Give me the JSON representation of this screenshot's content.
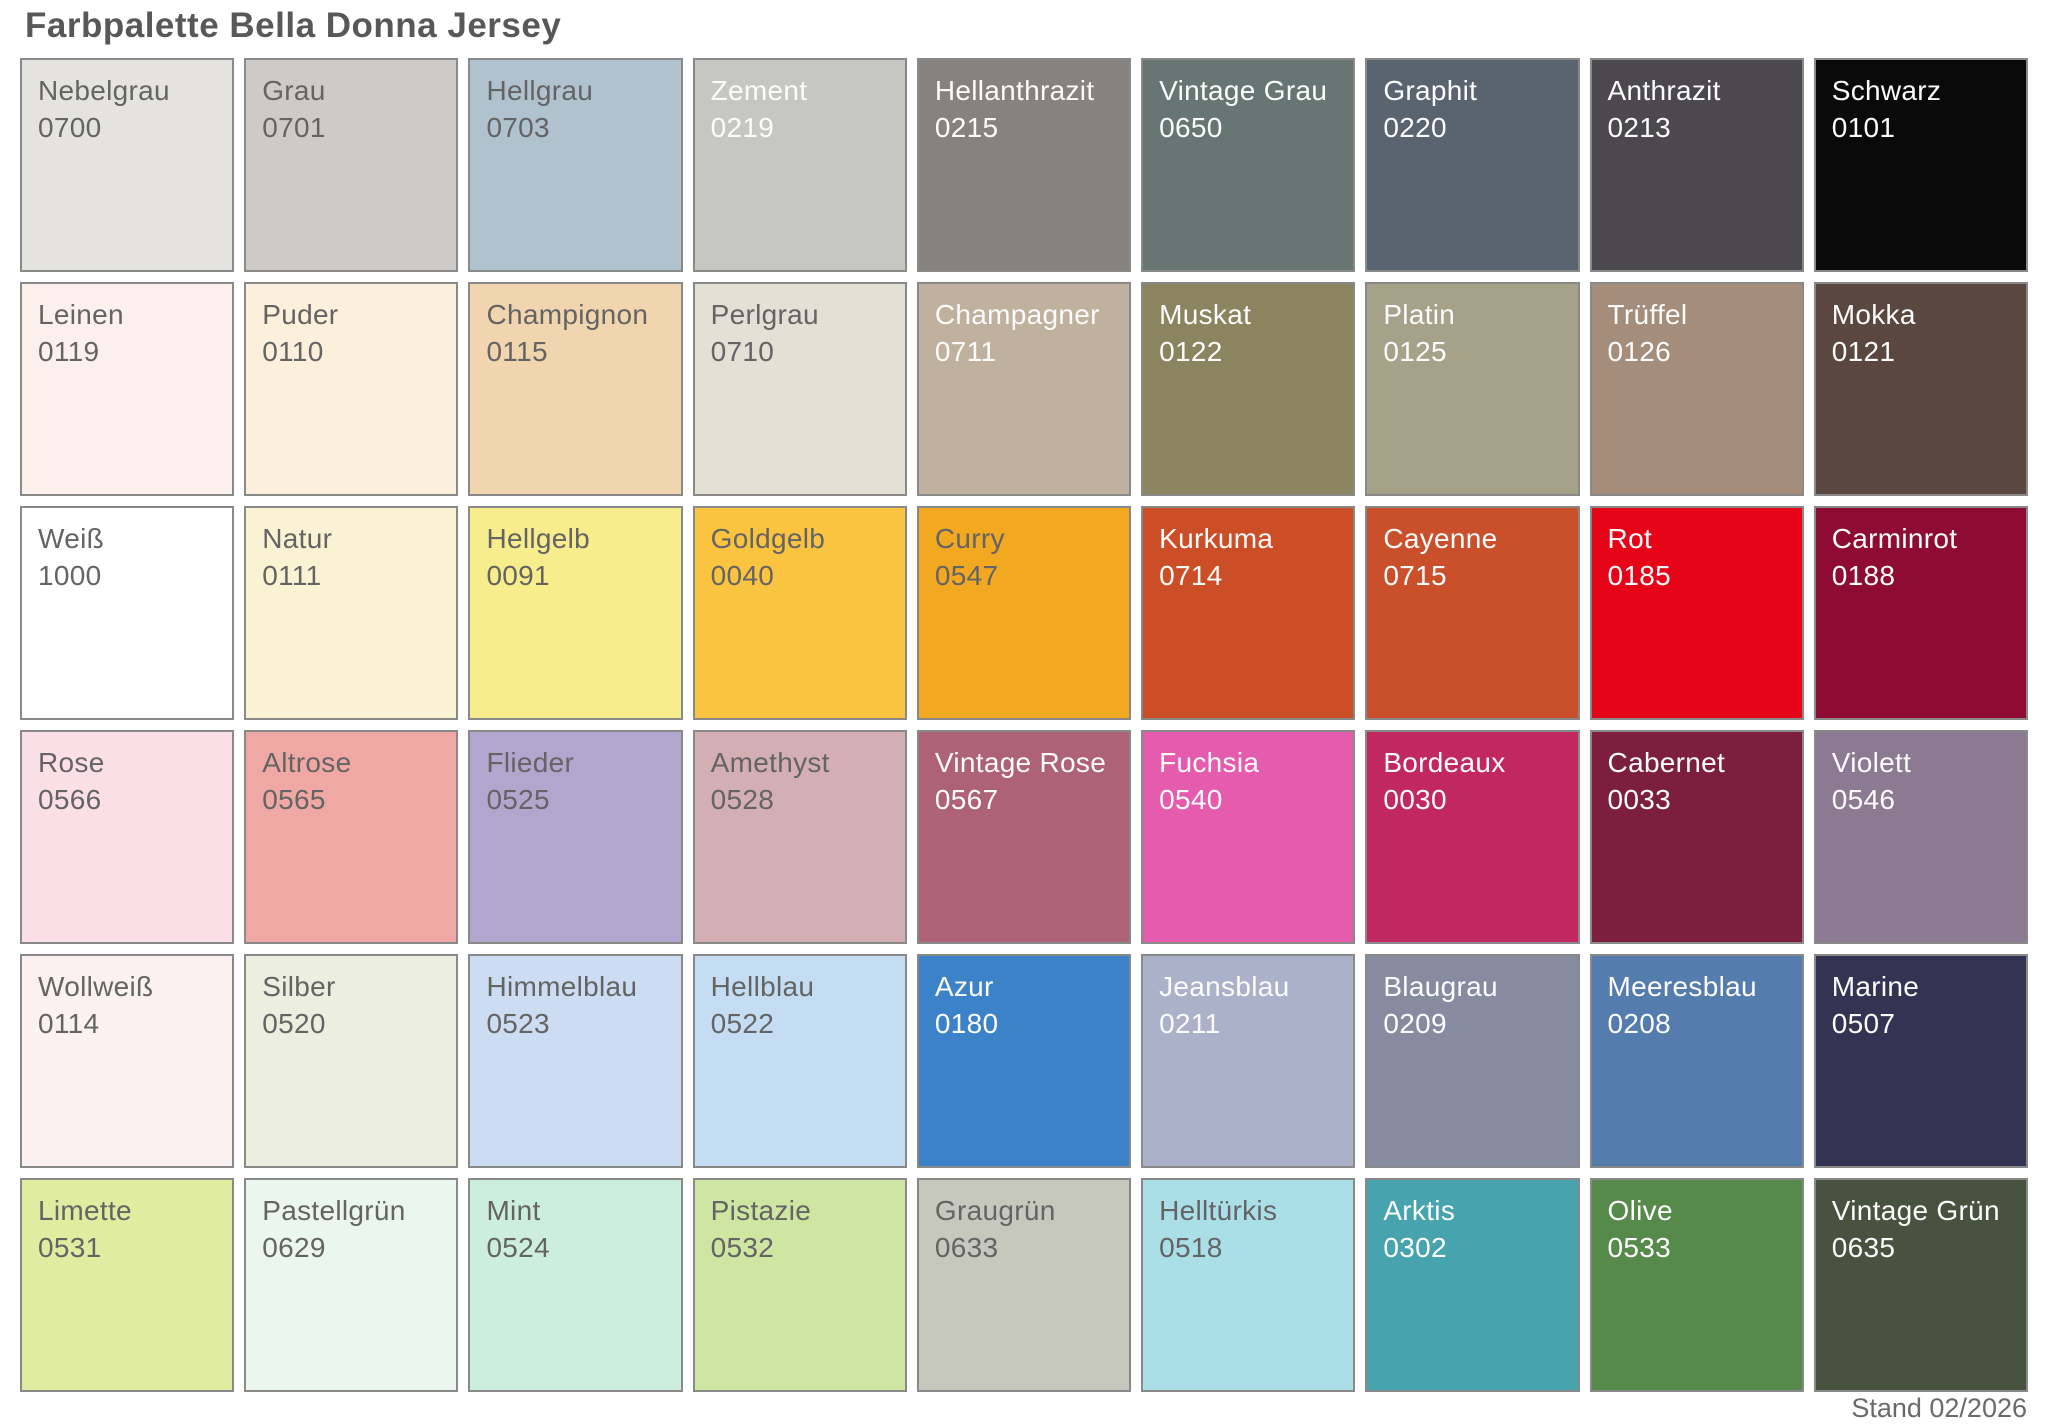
{
  "title": "Farbpalette Bella Donna Jersey",
  "footer": "Stand 02/2026",
  "palette": {
    "columns": 9,
    "rows": 6,
    "border_color": "#898989",
    "dark_label_color": "#646464",
    "light_label_color": "#fbfbfb",
    "swatches": [
      {
        "name": "Nebelgrau",
        "code": "0700",
        "color": "#e4e3e0",
        "text": "dark"
      },
      {
        "name": "Grau",
        "code": "0701",
        "color": "#cecac8",
        "text": "dark"
      },
      {
        "name": "Hellgrau",
        "code": "0703",
        "color": "#b1c2cf",
        "text": "dark"
      },
      {
        "name": "Zement",
        "code": "0219",
        "color": "#c6c7c3",
        "text": "light"
      },
      {
        "name": "Hellanthrazit",
        "code": "0215",
        "color": "#85827f",
        "text": "light"
      },
      {
        "name": "Vintage Grau",
        "code": "0650",
        "color": "#687673",
        "text": "light"
      },
      {
        "name": "Graphit",
        "code": "0220",
        "color": "#5a6470",
        "text": "light"
      },
      {
        "name": "Anthrazit",
        "code": "0213",
        "color": "#4c4850",
        "text": "light"
      },
      {
        "name": "Schwarz",
        "code": "0101",
        "color": "#0a0a0a",
        "text": "light"
      },
      {
        "name": "Leinen",
        "code": "0119",
        "color": "#fcf0ec",
        "text": "dark"
      },
      {
        "name": "Puder",
        "code": "0110",
        "color": "#fcefdc",
        "text": "dark"
      },
      {
        "name": "Champignon",
        "code": "0115",
        "color": "#f0d5ae",
        "text": "dark"
      },
      {
        "name": "Perlgrau",
        "code": "0710",
        "color": "#e3e0d6",
        "text": "dark"
      },
      {
        "name": "Champagner",
        "code": "0711",
        "color": "#bfb19d",
        "text": "light"
      },
      {
        "name": "Muskat",
        "code": "0122",
        "color": "#8a845f",
        "text": "light"
      },
      {
        "name": "Platin",
        "code": "0125",
        "color": "#a6a28a",
        "text": "light"
      },
      {
        "name": "Trüffel",
        "code": "0126",
        "color": "#a58d7b",
        "text": "light"
      },
      {
        "name": "Mokka",
        "code": "0121",
        "color": "#594740",
        "text": "light"
      },
      {
        "name": "Weiß",
        "code": "1000",
        "color": "#ffffff",
        "text": "dark"
      },
      {
        "name": "Natur",
        "code": "0111",
        "color": "#faf3d3",
        "text": "dark"
      },
      {
        "name": "Hellgelb",
        "code": "0091",
        "color": "#f8ed8c",
        "text": "dark"
      },
      {
        "name": "Goldgelb",
        "code": "0040",
        "color": "#fbc440",
        "text": "dark"
      },
      {
        "name": "Curry",
        "code": "0547",
        "color": "#f2a821",
        "text": "dark"
      },
      {
        "name": "Kurkuma",
        "code": "0714",
        "color": "#cb4e26",
        "text": "light"
      },
      {
        "name": "Cayenne",
        "code": "0715",
        "color": "#ca502c",
        "text": "light"
      },
      {
        "name": "Rot",
        "code": "0185",
        "color": "#e60418",
        "text": "light"
      },
      {
        "name": "Carminrot",
        "code": "0188",
        "color": "#8e0c34",
        "text": "light"
      },
      {
        "name": "Rose",
        "code": "0566",
        "color": "#fbdfe7",
        "text": "dark"
      },
      {
        "name": "Altrose",
        "code": "0565",
        "color": "#f0a8a4",
        "text": "dark"
      },
      {
        "name": "Flieder",
        "code": "0525",
        "color": "#b3a6ce",
        "text": "dark"
      },
      {
        "name": "Amethyst",
        "code": "0528",
        "color": "#d3aeb2",
        "text": "dark"
      },
      {
        "name": "Vintage Rose",
        "code": "0567",
        "color": "#ad6275",
        "text": "light"
      },
      {
        "name": "Fuchsia",
        "code": "0540",
        "color": "#e55bad",
        "text": "light"
      },
      {
        "name": "Bordeaux",
        "code": "0030",
        "color": "#c22860",
        "text": "light"
      },
      {
        "name": "Cabernet",
        "code": "0033",
        "color": "#7c1f3f",
        "text": "light"
      },
      {
        "name": "Violett",
        "code": "0546",
        "color": "#8b7a92",
        "text": "light"
      },
      {
        "name": "Wollweiß",
        "code": "0114",
        "color": "#faf1f0",
        "text": "dark"
      },
      {
        "name": "Silber",
        "code": "0520",
        "color": "#eceee0",
        "text": "dark"
      },
      {
        "name": "Himmelblau",
        "code": "0523",
        "color": "#ccdcf2",
        "text": "dark"
      },
      {
        "name": "Hellblau",
        "code": "0522",
        "color": "#c4ddf2",
        "text": "dark"
      },
      {
        "name": "Azur",
        "code": "0180",
        "color": "#3c82c8",
        "text": "light"
      },
      {
        "name": "Jeansblau",
        "code": "0211",
        "color": "#aab1c8",
        "text": "light"
      },
      {
        "name": "Blaugrau",
        "code": "0209",
        "color": "#868ba0",
        "text": "light"
      },
      {
        "name": "Meeresblau",
        "code": "0208",
        "color": "#547cac",
        "text": "light"
      },
      {
        "name": "Marine",
        "code": "0507",
        "color": "#333354",
        "text": "light"
      },
      {
        "name": "Limette",
        "code": "0531",
        "color": "#e0eda0",
        "text": "dark"
      },
      {
        "name": "Pastellgrün",
        "code": "0629",
        "color": "#eaf6ee",
        "text": "dark"
      },
      {
        "name": "Mint",
        "code": "0524",
        "color": "#cceedd",
        "text": "dark"
      },
      {
        "name": "Pistazie",
        "code": "0532",
        "color": "#cfe6a2",
        "text": "dark"
      },
      {
        "name": "Graugrün",
        "code": "0633",
        "color": "#c6c8bd",
        "text": "dark"
      },
      {
        "name": "Helltürkis",
        "code": "0518",
        "color": "#aadfe8",
        "text": "dark"
      },
      {
        "name": "Arktis",
        "code": "0302",
        "color": "#47a3ad",
        "text": "light"
      },
      {
        "name": "Olive",
        "code": "0533",
        "color": "#568a4b",
        "text": "light"
      },
      {
        "name": "Vintage Grün",
        "code": "0635",
        "color": "#47523f",
        "text": "light"
      }
    ]
  }
}
